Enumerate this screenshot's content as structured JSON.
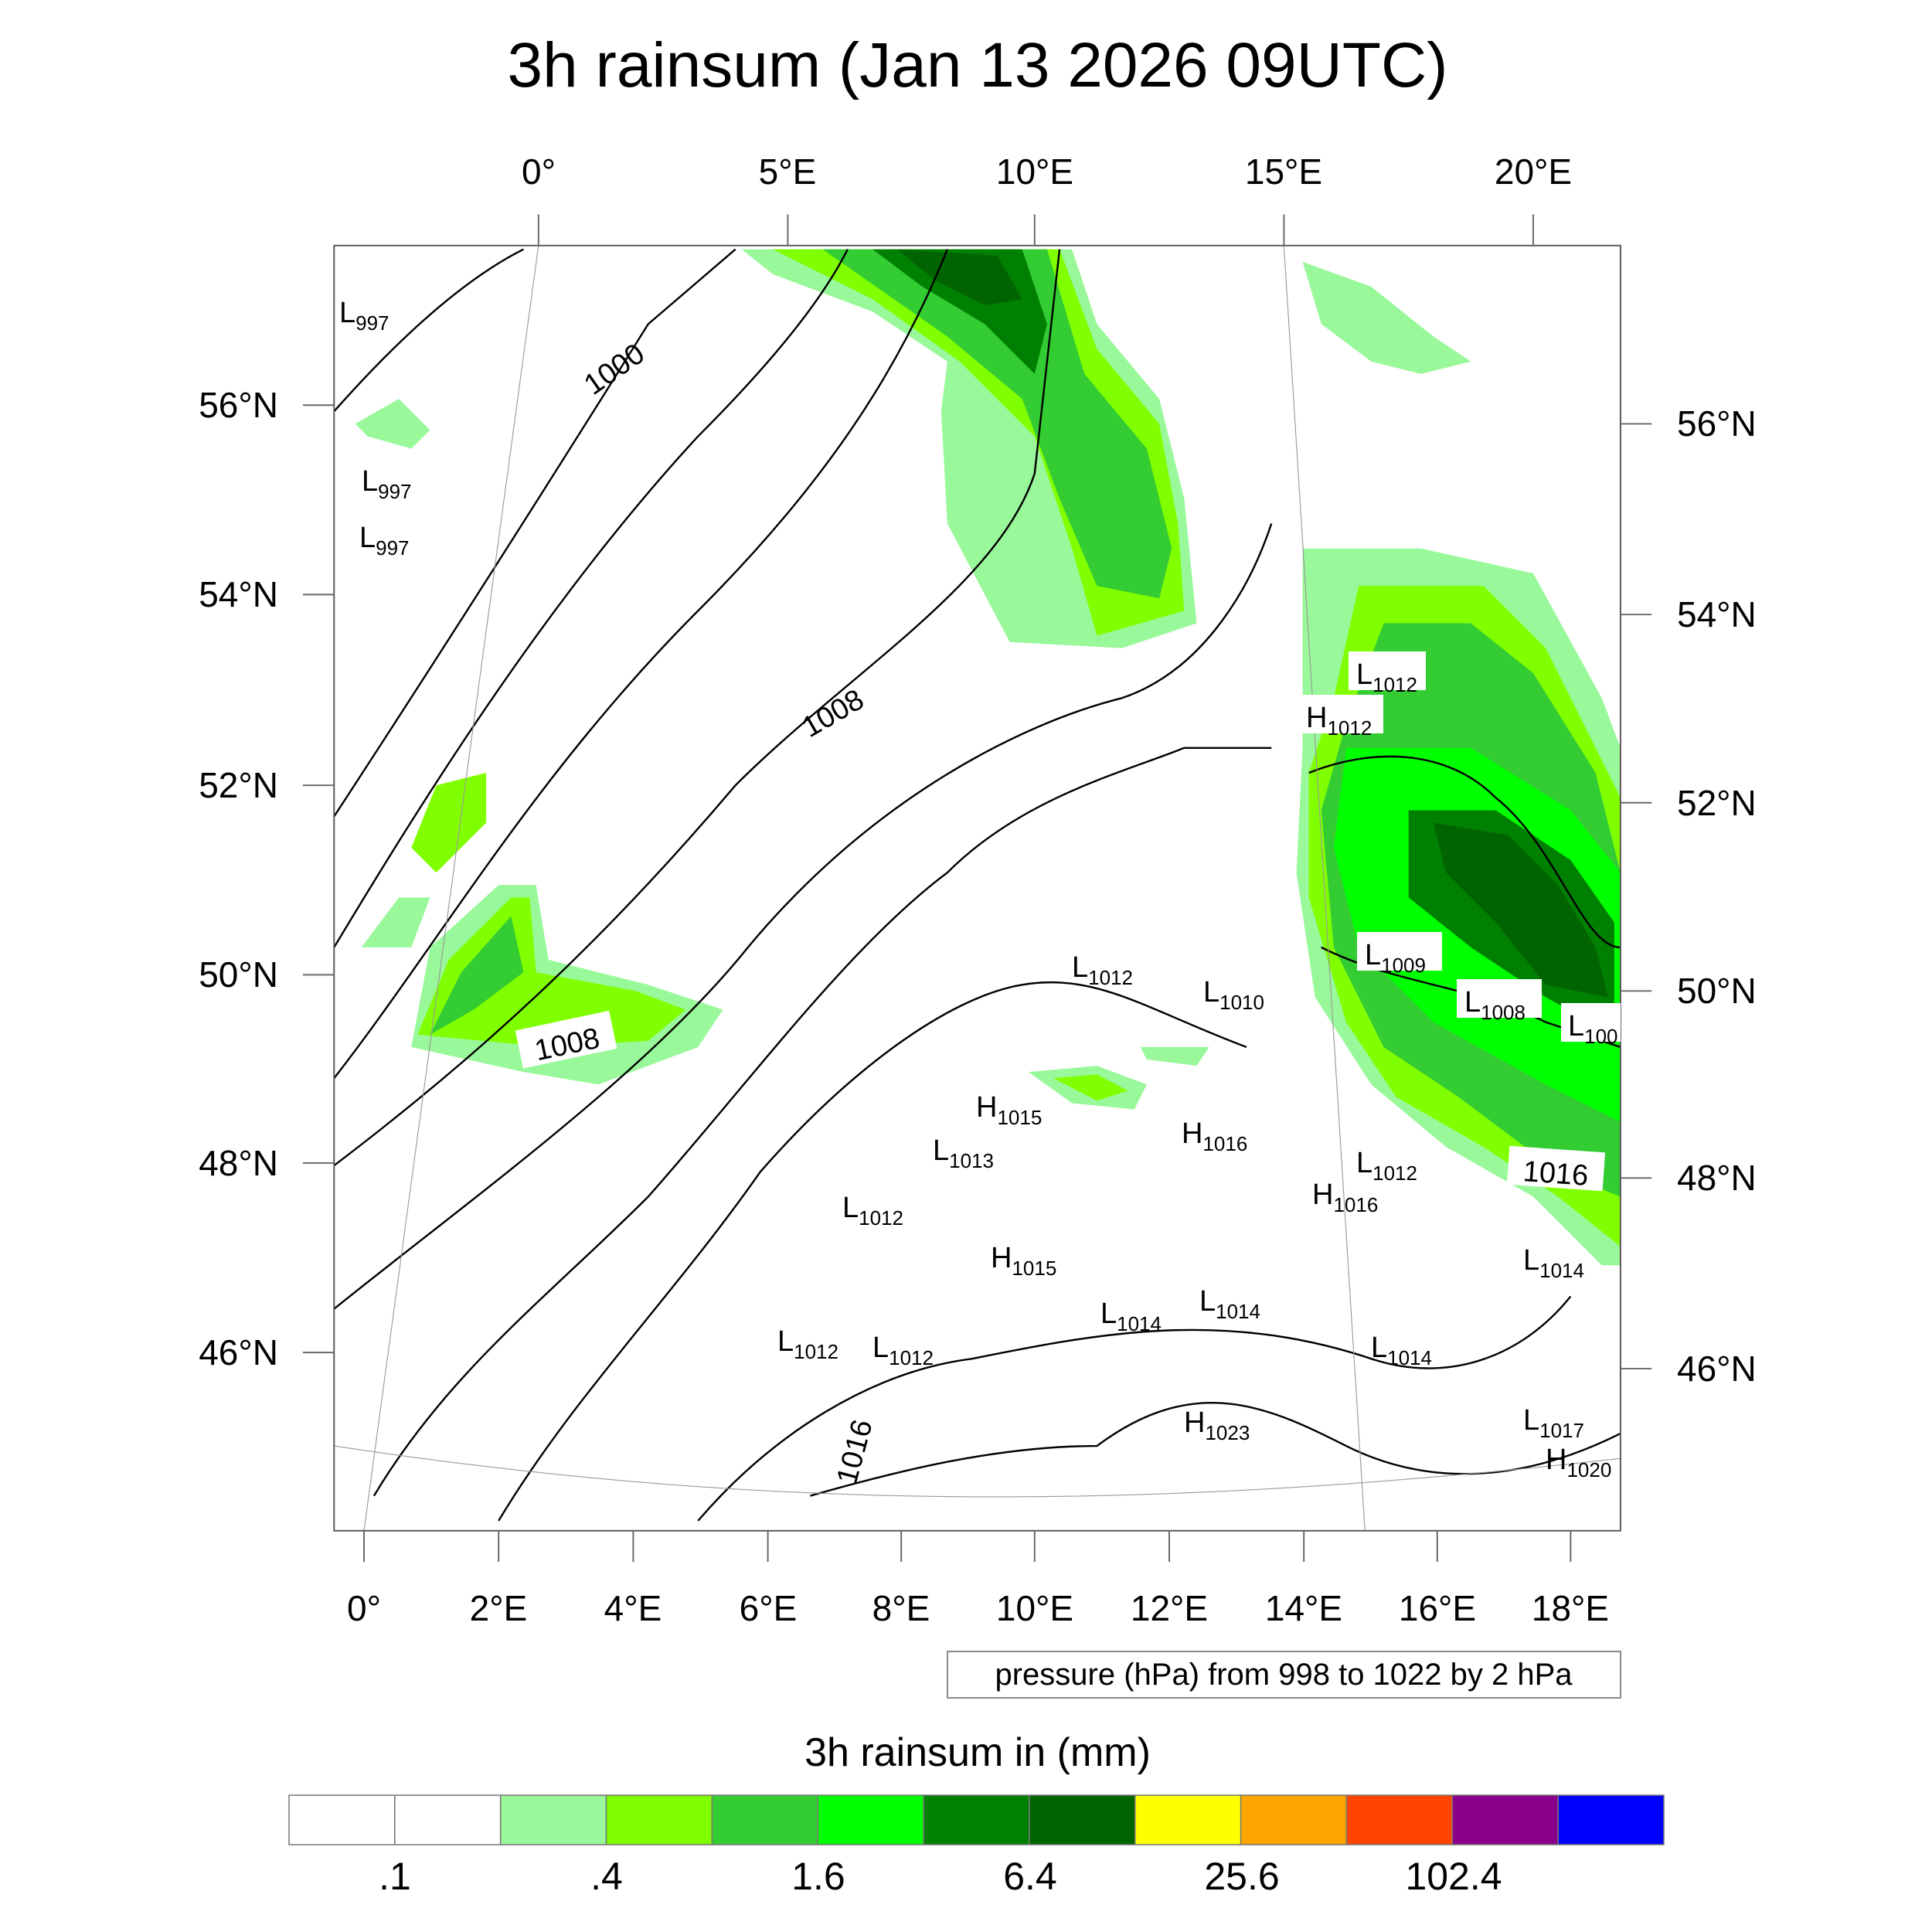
{
  "chart_data": {
    "type": "heatmap",
    "title": "3h rainsum (Jan 13 2026 09UTC)",
    "top_lon_ticks": [
      "0°",
      "5°E",
      "10°E",
      "15°E",
      "20°E"
    ],
    "bottom_lon_ticks": [
      "0°",
      "2°E",
      "4°E",
      "6°E",
      "8°E",
      "10°E",
      "12°E",
      "14°E",
      "16°E",
      "18°E"
    ],
    "left_lat_ticks": [
      "56°N",
      "54°N",
      "52°N",
      "50°N",
      "48°N",
      "46°N"
    ],
    "right_lat_ticks": [
      "56°N",
      "54°N",
      "52°N",
      "50°N",
      "48°N",
      "46°N"
    ],
    "contour_info": "pressure (hPa) from 998 to 1022 by 2 hPa",
    "contour_labels": [
      "1000",
      "1008",
      "1008",
      "1016",
      "1016"
    ],
    "pressure_centers": [
      {
        "type": "L",
        "value": "997"
      },
      {
        "type": "L",
        "value": "997"
      },
      {
        "type": "L",
        "value": "997"
      },
      {
        "type": "L",
        "value": "1012"
      },
      {
        "type": "H",
        "value": "1012"
      },
      {
        "type": "L",
        "value": "1009"
      },
      {
        "type": "L",
        "value": "1008"
      },
      {
        "type": "L",
        "value": "100"
      },
      {
        "type": "L",
        "value": "1012"
      },
      {
        "type": "L",
        "value": "1010"
      },
      {
        "type": "H",
        "value": "1015"
      },
      {
        "type": "H",
        "value": "1016"
      },
      {
        "type": "L",
        "value": "1013"
      },
      {
        "type": "L",
        "value": "1012"
      },
      {
        "type": "H",
        "value": "1016"
      },
      {
        "type": "L",
        "value": "1012"
      },
      {
        "type": "H",
        "value": "1015"
      },
      {
        "type": "L",
        "value": "1014"
      },
      {
        "type": "L",
        "value": "1014"
      },
      {
        "type": "L",
        "value": "1014"
      },
      {
        "type": "L",
        "value": "1012"
      },
      {
        "type": "L",
        "value": "1012"
      },
      {
        "type": "L",
        "value": "1014"
      },
      {
        "type": "H",
        "value": "1023"
      },
      {
        "type": "L",
        "value": "1017"
      },
      {
        "type": "H",
        "value": "1020"
      }
    ],
    "colorbar": {
      "title": "3h rainsum in (mm)",
      "colors": [
        "#ffffff",
        "#ffffff",
        "#99f899",
        "#80ff00",
        "#33cc33",
        "#00ff00",
        "#008000",
        "#006400",
        "#ffff00",
        "#ffa500",
        "#ff4500",
        "#8b008b",
        "#0000ff"
      ],
      "labels": [
        ".1",
        ".4",
        "1.6",
        "6.4",
        "25.6",
        "102.4"
      ]
    }
  }
}
